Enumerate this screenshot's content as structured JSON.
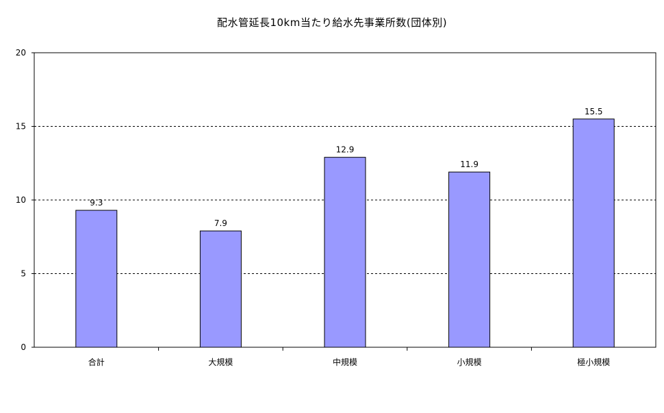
{
  "chart_data": {
    "type": "bar",
    "title": "配水管延長10km当たり給水先事業所数(団体別)",
    "categories": [
      "合計",
      "大規模",
      "中規模",
      "小規模",
      "極小規模"
    ],
    "values": [
      9.3,
      7.9,
      12.9,
      11.9,
      15.5
    ],
    "data_labels": [
      "9.3",
      "7.9",
      "12.9",
      "11.9",
      "15.5"
    ],
    "y_ticks": [
      "0",
      "5",
      "10",
      "15",
      "20"
    ],
    "ylim": [
      0,
      20
    ],
    "xlabel": "",
    "ylabel": "",
    "grid": "horizontal dashed",
    "bar_color": "#9999ff",
    "bar_border_color": "#000000"
  }
}
